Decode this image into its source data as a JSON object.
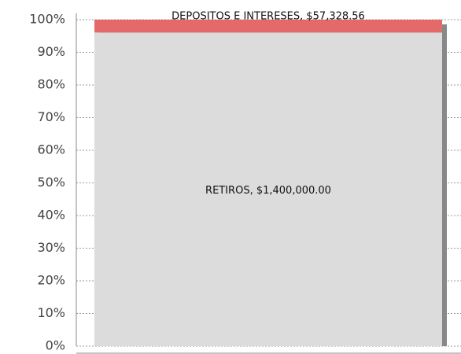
{
  "chart_data": {
    "type": "bar",
    "stacking": "percent",
    "series": [
      {
        "color": "#dcdcdc",
        "values": [
          1400000
        ],
        "value_labels": [
          "RETIROS, $1,400,000.00"
        ]
      },
      {
        "color": "#e46a6a",
        "values": [
          57328.56
        ],
        "value_labels": [
          "DEPOSITOS E INTERESES, $57,328.56"
        ]
      }
    ],
    "ylim": [
      0,
      100
    ],
    "yticks": [
      {
        "value": 0,
        "label": "0%"
      },
      {
        "value": 10,
        "label": "10%"
      },
      {
        "value": 20,
        "label": "20%"
      },
      {
        "value": 30,
        "label": "30%"
      },
      {
        "value": 40,
        "label": "40%"
      },
      {
        "value": 50,
        "label": "50%"
      },
      {
        "value": 60,
        "label": "60%"
      },
      {
        "value": 70,
        "label": "70%"
      },
      {
        "value": 80,
        "label": "80%"
      },
      {
        "value": 90,
        "label": "90%"
      },
      {
        "value": 100,
        "label": "100%"
      }
    ],
    "grid": true
  }
}
